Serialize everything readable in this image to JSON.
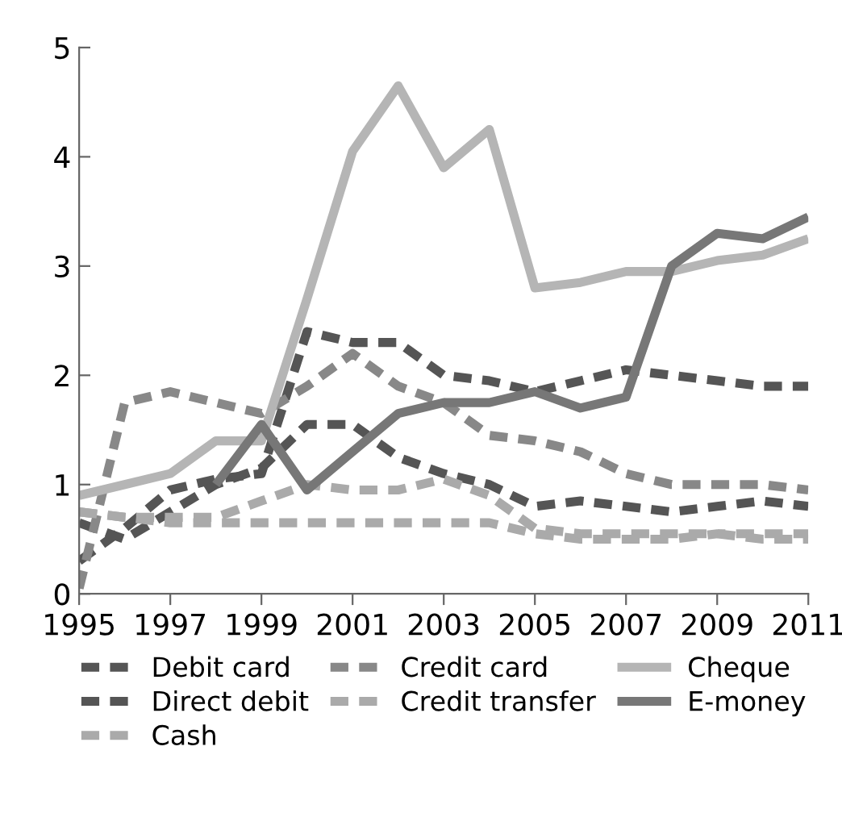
{
  "chart_data": {
    "type": "line",
    "x": [
      1995,
      1996,
      1997,
      1998,
      1999,
      2000,
      2001,
      2002,
      2003,
      2004,
      2005,
      2006,
      2007,
      2008,
      2009,
      2010,
      2011
    ],
    "xlim": [
      1995,
      2011
    ],
    "xticks": [
      1995,
      1997,
      1999,
      2001,
      2003,
      2005,
      2007,
      2009,
      2011
    ],
    "ylim": [
      0,
      5
    ],
    "yticks": [
      0,
      1,
      2,
      3,
      4,
      5
    ],
    "grid": false,
    "legend": "bottom",
    "series": [
      {
        "name": "Debit card",
        "color": "#555555",
        "line_style": "dashed",
        "values": [
          0.3,
          0.6,
          0.95,
          1.05,
          1.1,
          2.4,
          2.3,
          2.3,
          2.0,
          1.95,
          1.85,
          1.95,
          2.05,
          2.0,
          1.95,
          1.9,
          1.9
        ]
      },
      {
        "name": "Direct debit",
        "color": "#555555",
        "line_style": "dashed",
        "values": [
          0.65,
          0.5,
          0.75,
          1.0,
          1.15,
          1.55,
          1.55,
          1.25,
          1.1,
          1.0,
          0.8,
          0.85,
          0.8,
          0.75,
          0.8,
          0.85,
          0.8
        ]
      },
      {
        "name": "Cash",
        "color": "#aaaaaa",
        "line_style": "dashed",
        "values": [
          0.75,
          0.7,
          0.65,
          0.65,
          0.65,
          0.65,
          0.65,
          0.65,
          0.65,
          0.65,
          0.55,
          0.5,
          0.5,
          0.5,
          0.55,
          0.55,
          0.55
        ]
      },
      {
        "name": "Credit card",
        "color": "#888888",
        "line_style": "dashed",
        "values": [
          0.05,
          1.75,
          1.85,
          1.75,
          1.65,
          1.9,
          2.2,
          1.9,
          1.75,
          1.45,
          1.4,
          1.3,
          1.1,
          1.0,
          1.0,
          1.0,
          0.95
        ]
      },
      {
        "name": "Credit transfer",
        "color": "#aaaaaa",
        "line_style": "dashed",
        "values": [
          0.75,
          0.7,
          0.7,
          0.7,
          0.85,
          1.0,
          0.95,
          0.95,
          1.05,
          0.9,
          0.6,
          0.55,
          0.55,
          0.55,
          0.55,
          0.5,
          0.5
        ]
      },
      {
        "name": "Cheque",
        "color": "#b5b5b5",
        "line_style": "solid",
        "values": [
          0.9,
          1.0,
          1.1,
          1.4,
          1.4,
          2.7,
          4.05,
          4.65,
          3.9,
          4.25,
          2.8,
          2.85,
          2.95,
          2.95,
          3.05,
          3.1,
          3.25
        ]
      },
      {
        "name": "E-money",
        "color": "#777777",
        "line_style": "solid",
        "values": [
          null,
          null,
          null,
          1.0,
          1.55,
          0.95,
          1.3,
          1.65,
          1.75,
          1.75,
          1.85,
          1.7,
          1.8,
          3.0,
          3.3,
          3.25,
          3.45
        ]
      }
    ]
  }
}
